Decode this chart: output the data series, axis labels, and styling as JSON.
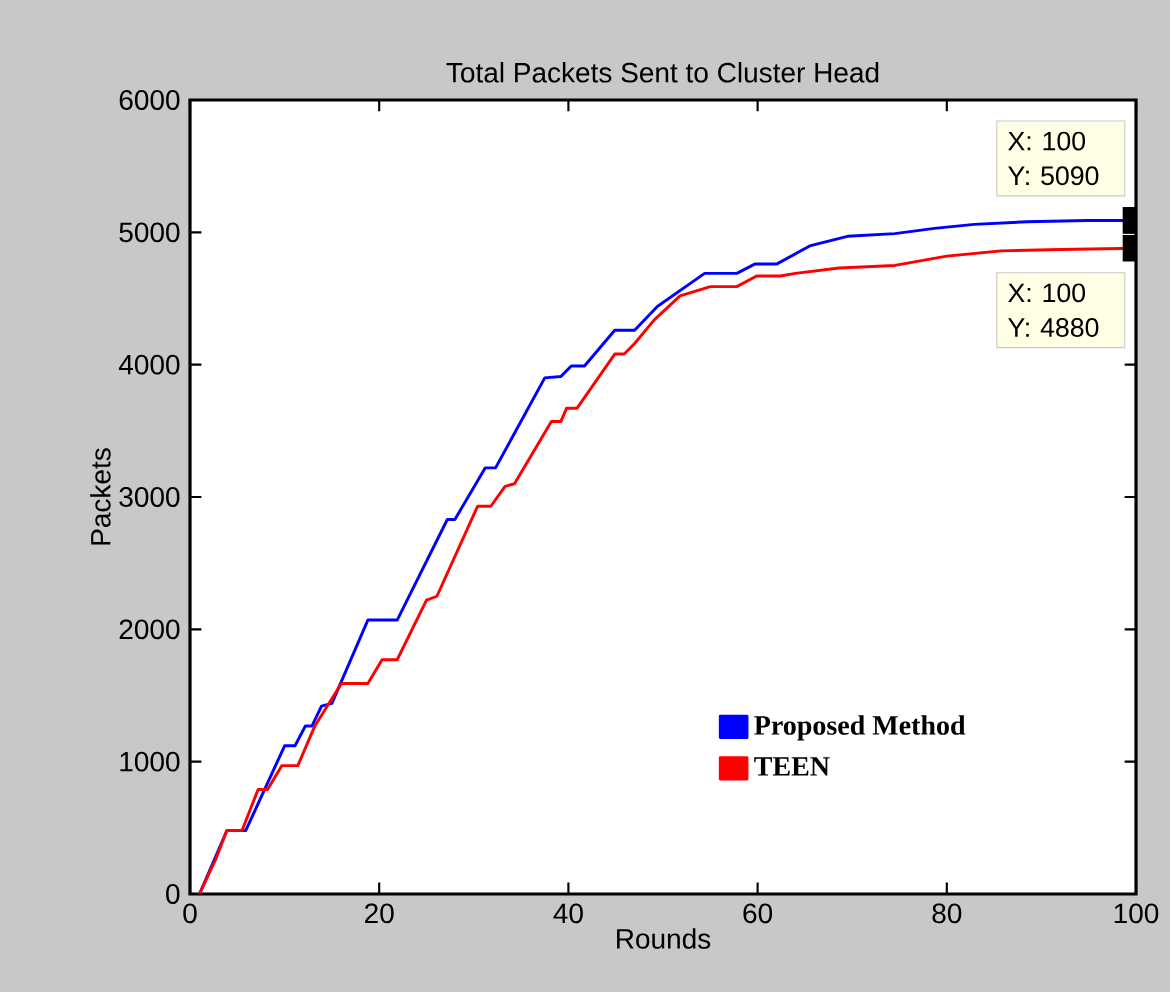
{
  "chart_data": {
    "type": "line",
    "title": "Total Packets Sent to Cluster Head",
    "xlabel": "Rounds",
    "ylabel": "Packets",
    "xlim": [
      0,
      100
    ],
    "ylim": [
      0,
      6000
    ],
    "xticks": [
      0,
      20,
      40,
      60,
      80,
      100
    ],
    "yticks": [
      0,
      1000,
      2000,
      3000,
      4000,
      5000,
      6000
    ],
    "grid": false,
    "legend": "bottom right",
    "marker": "none",
    "line_style": "solid",
    "series": [
      {
        "name": "Proposed Method",
        "color": "#0000ff",
        "x": [
          1,
          3.9,
          5.9,
          10,
          11.1,
          12.2,
          12.9,
          13.9,
          15,
          18.8,
          21.9,
          27.2,
          28,
          31.2,
          32.3,
          37.5,
          39.2,
          40.3,
          41.7,
          44.9,
          47,
          49.4,
          54.4,
          57.8,
          59.7,
          62,
          65.6,
          69.5,
          74.5,
          78.7,
          82.9,
          88.5,
          94.8,
          100
        ],
        "values": [
          0,
          480,
          480,
          1120,
          1120,
          1270,
          1270,
          1420,
          1440,
          2070,
          2070,
          2830,
          2830,
          3220,
          3220,
          3900,
          3910,
          3990,
          3990,
          4260,
          4260,
          4440,
          4690,
          4690,
          4760,
          4760,
          4900,
          4970,
          4990,
          5030,
          5060,
          5080,
          5090,
          5090
        ]
      },
      {
        "name": "TEEN",
        "color": "#ff0000",
        "x": [
          1,
          2.7,
          3.9,
          5.5,
          7.2,
          8.2,
          9.7,
          11.4,
          13.2,
          16,
          18.8,
          20.3,
          21.9,
          25,
          26.1,
          30.4,
          31.8,
          33.3,
          34.3,
          38.2,
          39.2,
          39.8,
          40.9,
          44.9,
          45.9,
          47,
          49.1,
          51.8,
          55,
          57.8,
          59.9,
          62.4,
          64,
          68.6,
          74.5,
          80,
          85.7,
          92,
          100
        ],
        "values": [
          0,
          260,
          480,
          480,
          790,
          790,
          970,
          970,
          1270,
          1590,
          1590,
          1770,
          1770,
          2220,
          2250,
          2930,
          2930,
          3080,
          3100,
          3570,
          3570,
          3670,
          3670,
          4080,
          4080,
          4160,
          4340,
          4520,
          4590,
          4590,
          4670,
          4670,
          4690,
          4730,
          4750,
          4820,
          4860,
          4870,
          4880
        ]
      }
    ],
    "annotations": [
      {
        "text": "X: 100 Y: 5090",
        "x": 100,
        "y": 5090
      },
      {
        "text": "X: 100 Y: 4880",
        "x": 100,
        "y": 4880
      }
    ]
  }
}
